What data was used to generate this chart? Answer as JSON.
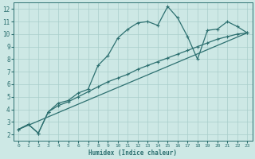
{
  "xlabel": "Humidex (Indice chaleur)",
  "xlim": [
    -0.5,
    23.5
  ],
  "ylim": [
    1.5,
    12.5
  ],
  "xticks": [
    0,
    1,
    2,
    3,
    4,
    5,
    6,
    7,
    8,
    9,
    10,
    11,
    12,
    13,
    14,
    15,
    16,
    17,
    18,
    19,
    20,
    21,
    22,
    23
  ],
  "yticks": [
    2,
    3,
    4,
    5,
    6,
    7,
    8,
    9,
    10,
    11,
    12
  ],
  "bg_color": "#cde8e5",
  "grid_color": "#a8ceca",
  "line_color": "#2d7070",
  "line1_x": [
    0,
    1,
    2,
    3,
    4,
    5,
    6,
    7,
    8,
    9,
    10,
    11,
    12,
    13,
    14,
    15,
    16,
    17,
    18,
    19,
    20,
    21,
    22,
    23
  ],
  "line1_y": [
    2.4,
    2.8,
    2.1,
    3.8,
    4.5,
    4.7,
    5.3,
    5.6,
    7.5,
    8.3,
    9.7,
    10.4,
    10.9,
    11.0,
    10.7,
    12.2,
    11.3,
    9.8,
    8.0,
    10.3,
    10.4,
    11.0,
    10.6,
    10.1
  ],
  "line2_x": [
    0,
    1,
    2,
    3,
    4,
    5,
    6,
    7,
    8,
    9,
    10,
    11,
    12,
    13,
    14,
    15,
    16,
    17,
    18,
    19,
    20,
    21,
    22,
    23
  ],
  "line2_y": [
    2.4,
    2.8,
    2.1,
    3.8,
    4.3,
    4.6,
    5.0,
    5.4,
    5.8,
    6.2,
    6.5,
    6.8,
    7.2,
    7.5,
    7.8,
    8.1,
    8.4,
    8.7,
    9.0,
    9.3,
    9.6,
    9.8,
    10.0,
    10.1
  ],
  "line3_x": [
    0,
    23
  ],
  "line3_y": [
    2.4,
    10.1
  ],
  "marker": "+"
}
